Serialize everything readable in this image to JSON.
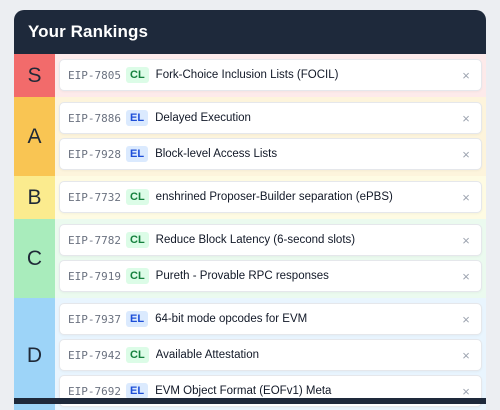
{
  "header": {
    "title": "Your Rankings"
  },
  "remove_glyph": "×",
  "tiers": [
    {
      "label": "S",
      "color": "#f26b6b",
      "bg": "#fdeaea",
      "items": [
        {
          "eip": "EIP-7805",
          "layer": "CL",
          "title": "Fork-Choice Inclusion Lists (FOCIL)"
        }
      ]
    },
    {
      "label": "A",
      "color": "#f9c553",
      "bg": "#fdf4dc",
      "items": [
        {
          "eip": "EIP-7886",
          "layer": "EL",
          "title": "Delayed Execution"
        },
        {
          "eip": "EIP-7928",
          "layer": "EL",
          "title": "Block-level Access Lists"
        }
      ]
    },
    {
      "label": "B",
      "color": "#fbeb8e",
      "bg": "#fefbe3",
      "items": [
        {
          "eip": "EIP-7732",
          "layer": "CL",
          "title": "enshrined Proposer-Builder separation (ePBS)"
        }
      ]
    },
    {
      "label": "C",
      "color": "#a9ecbc",
      "bg": "#ebfaef",
      "items": [
        {
          "eip": "EIP-7782",
          "layer": "CL",
          "title": "Reduce Block Latency (6-second slots)"
        },
        {
          "eip": "EIP-7919",
          "layer": "CL",
          "title": "Pureth - Provable RPC responses"
        }
      ]
    },
    {
      "label": "D",
      "color": "#9dd4f8",
      "bg": "#e9f5fe",
      "items": [
        {
          "eip": "EIP-7937",
          "layer": "EL",
          "title": "64-bit mode opcodes for EVM"
        },
        {
          "eip": "EIP-7942",
          "layer": "CL",
          "title": "Available Attestation"
        },
        {
          "eip": "EIP-7692",
          "layer": "EL",
          "title": "EVM Object Format (EOFv1) Meta"
        }
      ]
    }
  ]
}
